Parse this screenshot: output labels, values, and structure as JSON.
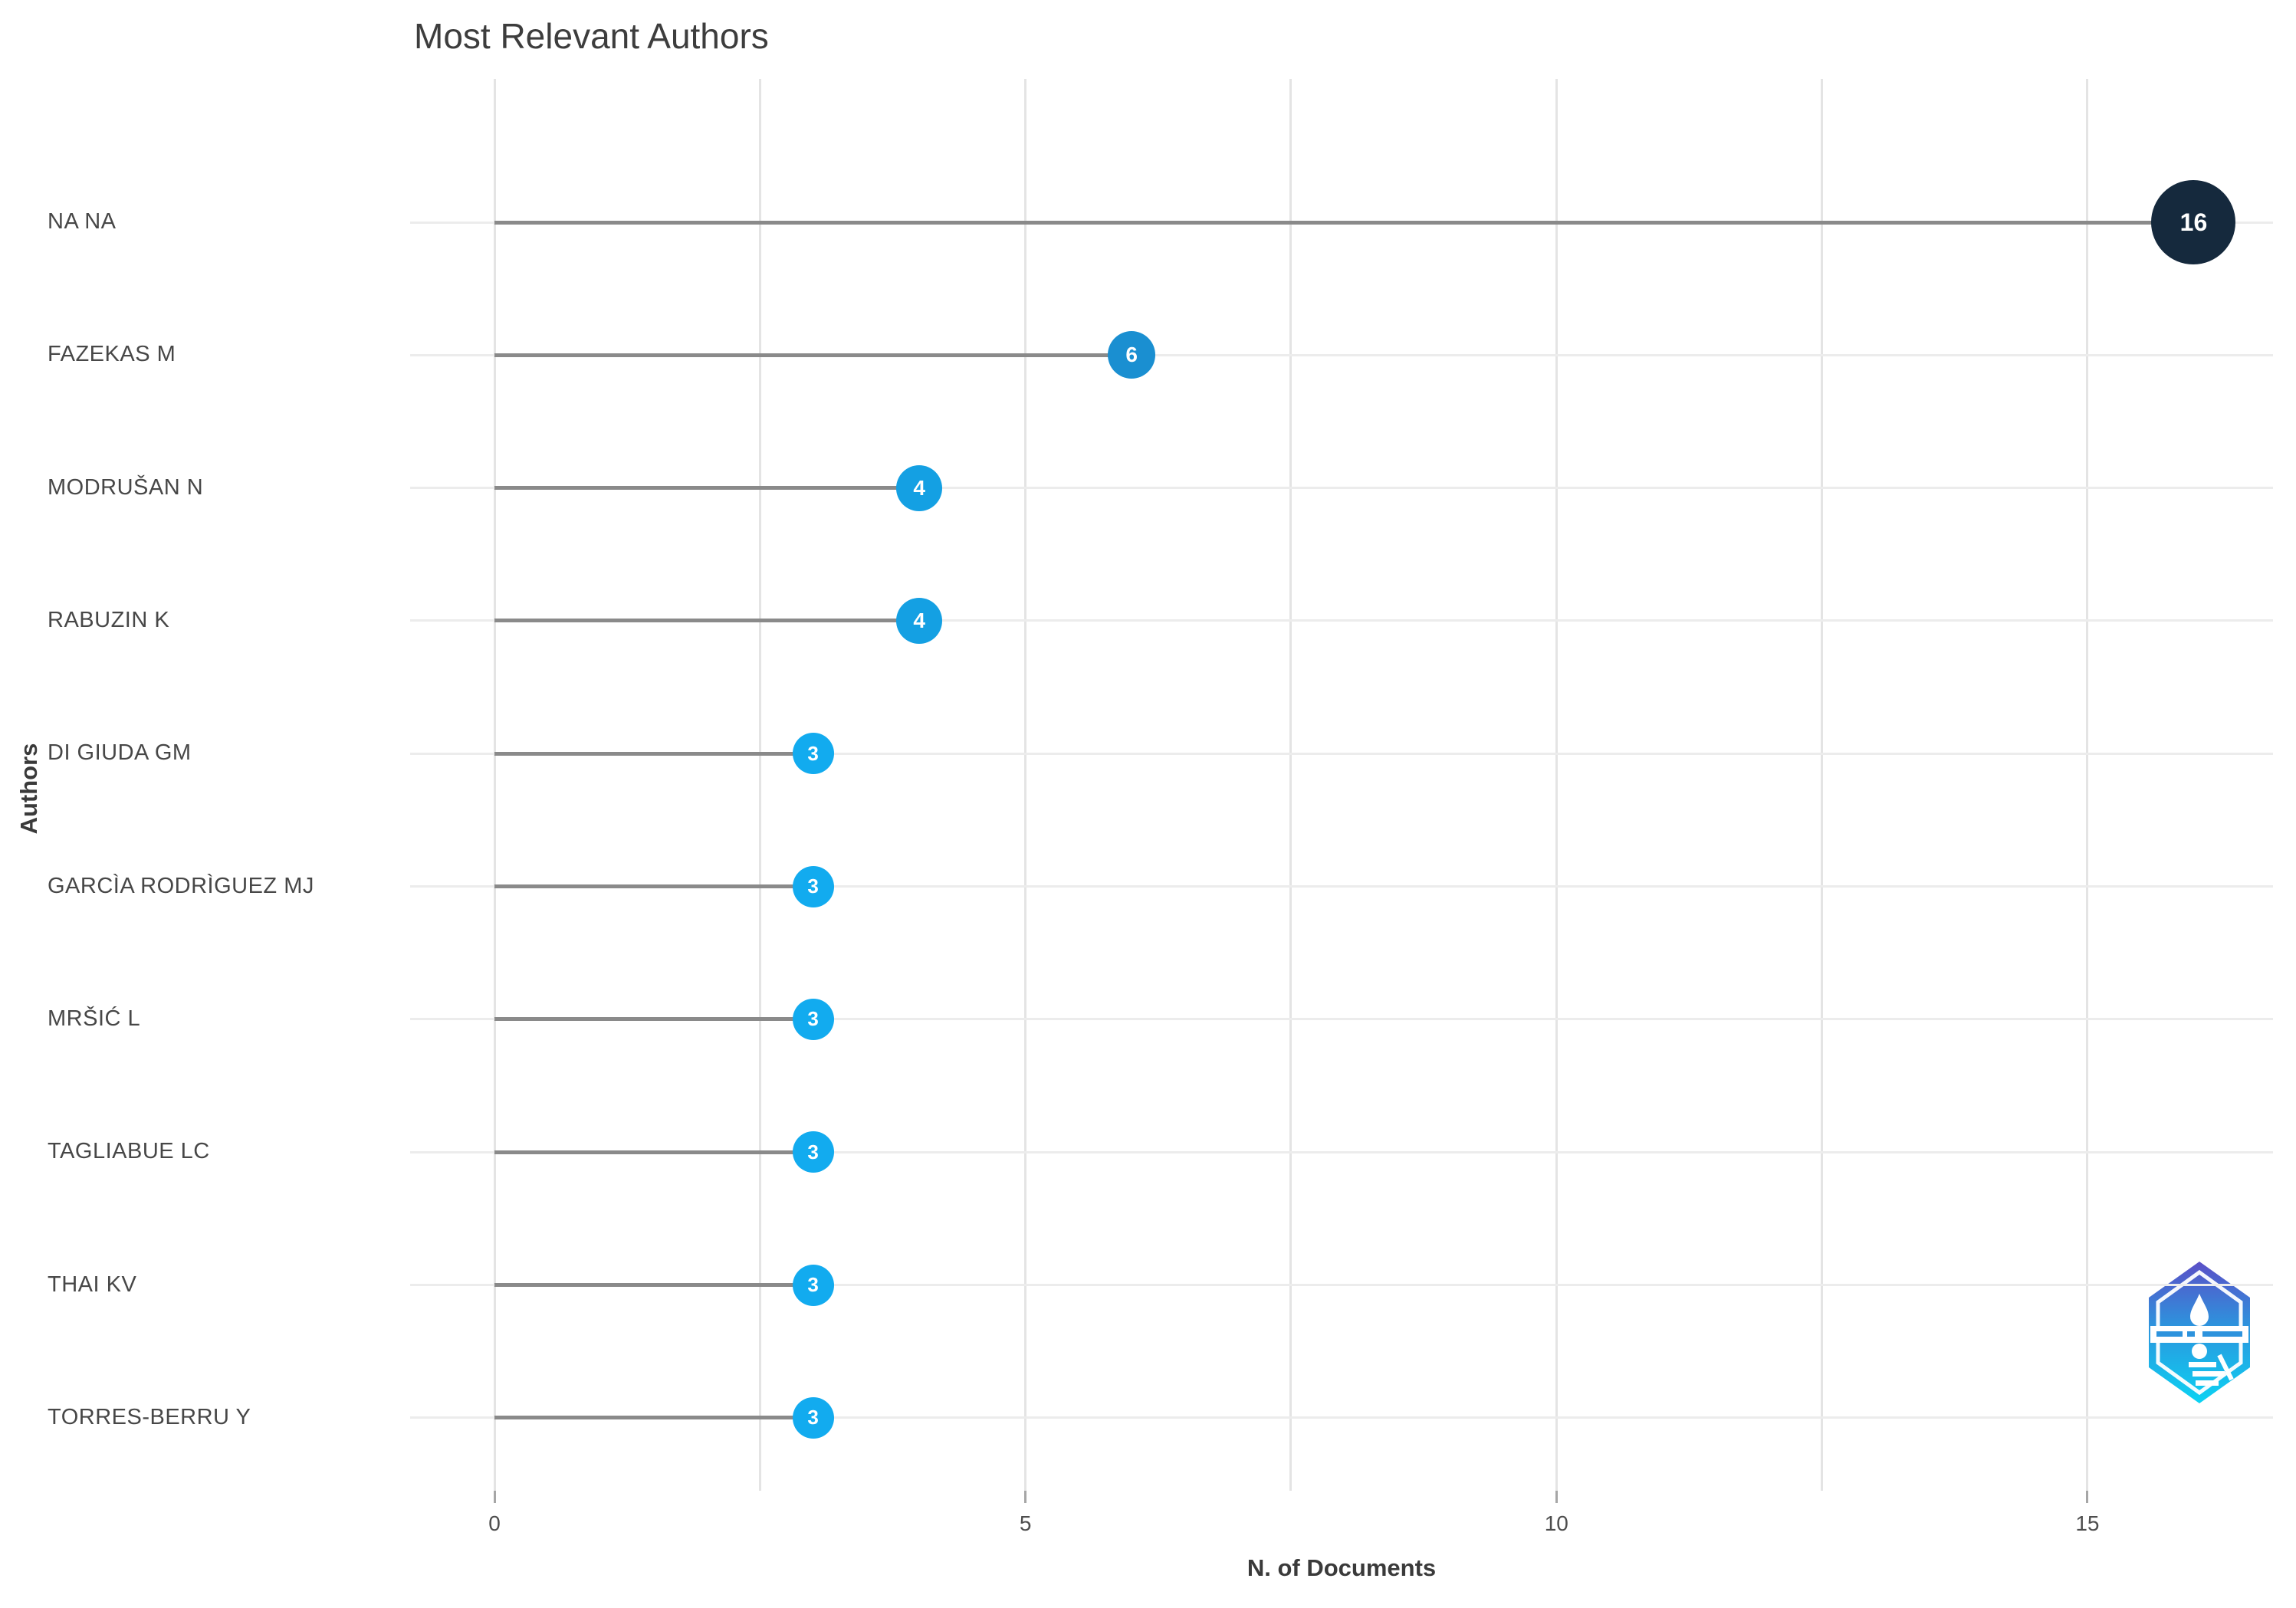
{
  "title": "Most Relevant Authors",
  "chart_data": {
    "type": "bar",
    "variant": "horizontal-lollipop",
    "title": "Most Relevant Authors",
    "xlabel": "N. of Documents",
    "ylabel": "Authors",
    "categories": [
      "NA NA",
      "FAZEKAS M",
      "MODRUŠAN N",
      "RABUZIN K",
      "DI GIUDA GM",
      "GARCÌA RODRÌGUEZ MJ",
      "MRŠIĆ L",
      "TAGLIABUE LC",
      "THAI KV",
      "TORRES-BERRU Y"
    ],
    "values": [
      16,
      6,
      4,
      4,
      3,
      3,
      3,
      3,
      3,
      3
    ],
    "data_labels_shown": true,
    "xlim": [
      0,
      17
    ],
    "xticks": [
      "0",
      "5",
      "10",
      "15"
    ],
    "xtick_values": [
      0,
      5,
      10,
      15
    ],
    "minor_grid_values": [
      2.5,
      7.5,
      12.5
    ],
    "grid": "light vertical gridlines every 2.5 units; one light horizontal line per author row",
    "legend": "none"
  },
  "style": {
    "dot_colors_by_value": {
      "16": "#15293d",
      "6": "#1a8fd1",
      "4": "#14a0e3",
      "3": "#12abef"
    },
    "dot_diameters_by_value": {
      "16": 110,
      "6": 62,
      "4": 60,
      "3": 54
    },
    "dot_label_color": "#ffffff",
    "stem_color": "#8a8a8a",
    "row_line_color": "#ececec",
    "grid_color": "#e4e4e4",
    "tick_color": "#a6a6a6",
    "text_color": "#474747",
    "title_color": "#3d3d3d",
    "background": "#ffffff"
  },
  "logo": {
    "name": "bibliometrix hexagon logo",
    "gradient_top": "#5b4fc7",
    "gradient_mid": "#2d93dd",
    "gradient_bottom": "#0bd3f3",
    "inner_detail_color": "#ffffff"
  }
}
